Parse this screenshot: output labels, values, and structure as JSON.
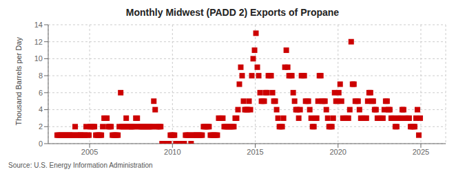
{
  "chart_data": {
    "type": "scatter",
    "title": "Monthly Midwest (PADD 2) Exports of Propane",
    "ylabel": "Thousand Barrels per Day",
    "annotations": [
      "Source: U.S. Energy Information Administration"
    ],
    "color": "#cc0000",
    "marker": "square",
    "grid": true,
    "xlim": [
      2002.5,
      2026.5
    ],
    "ylim": [
      0,
      14
    ],
    "xticks": [
      2005,
      2010,
      2015,
      2020,
      2025
    ],
    "yticks": [
      0,
      2,
      4,
      6,
      8,
      10,
      12,
      14
    ],
    "x": [
      2003.041667,
      2003.125,
      2003.208333,
      2003.291667,
      2003.375,
      2003.458333,
      2003.541667,
      2003.625,
      2003.708333,
      2003.791667,
      2003.875,
      2003.958333,
      2004.041667,
      2004.125,
      2004.208333,
      2004.291667,
      2004.375,
      2004.458333,
      2004.541667,
      2004.625,
      2004.708333,
      2004.791667,
      2004.875,
      2004.958333,
      2005.041667,
      2005.125,
      2005.208333,
      2005.291667,
      2005.375,
      2005.458333,
      2005.541667,
      2005.625,
      2005.708333,
      2005.791667,
      2005.875,
      2005.958333,
      2006.041667,
      2006.125,
      2006.208333,
      2006.291667,
      2006.375,
      2006.458333,
      2006.541667,
      2006.625,
      2006.708333,
      2006.791667,
      2006.875,
      2006.958333,
      2007.041667,
      2007.125,
      2007.208333,
      2007.291667,
      2007.375,
      2007.458333,
      2007.541667,
      2007.625,
      2007.708333,
      2007.791667,
      2007.875,
      2007.958333,
      2008.041667,
      2008.125,
      2008.208333,
      2008.291667,
      2008.375,
      2008.458333,
      2008.541667,
      2008.625,
      2008.708333,
      2008.791667,
      2008.875,
      2008.958333,
      2009.041667,
      2009.125,
      2009.208333,
      2009.291667,
      2009.375,
      2009.458333,
      2009.541667,
      2009.625,
      2009.708333,
      2009.791667,
      2009.875,
      2009.958333,
      2010.041667,
      2010.125,
      2010.208333,
      2010.291667,
      2010.375,
      2010.458333,
      2010.541667,
      2010.625,
      2010.708333,
      2010.791667,
      2010.875,
      2010.958333,
      2011.041667,
      2011.125,
      2011.208333,
      2011.291667,
      2011.375,
      2011.458333,
      2011.541667,
      2011.625,
      2011.708333,
      2011.791667,
      2011.875,
      2011.958333,
      2012.041667,
      2012.125,
      2012.208333,
      2012.291667,
      2012.375,
      2012.458333,
      2012.541667,
      2012.625,
      2012.708333,
      2012.791667,
      2012.875,
      2012.958333,
      2013.041667,
      2013.125,
      2013.208333,
      2013.291667,
      2013.375,
      2013.458333,
      2013.541667,
      2013.625,
      2013.708333,
      2013.791667,
      2013.875,
      2013.958333,
      2014.041667,
      2014.125,
      2014.208333,
      2014.291667,
      2014.375,
      2014.458333,
      2014.541667,
      2014.625,
      2014.708333,
      2014.791667,
      2014.875,
      2014.958333,
      2015.041667,
      2015.125,
      2015.208333,
      2015.291667,
      2015.375,
      2015.458333,
      2015.541667,
      2015.625,
      2015.708333,
      2015.791667,
      2015.875,
      2015.958333,
      2016.041667,
      2016.125,
      2016.208333,
      2016.291667,
      2016.375,
      2016.458333,
      2016.541667,
      2016.625,
      2016.708333,
      2016.791667,
      2016.875,
      2016.958333,
      2017.041667,
      2017.125,
      2017.208333,
      2017.291667,
      2017.375,
      2017.458333,
      2017.541667,
      2017.625,
      2017.708333,
      2017.791667,
      2017.875,
      2017.958333,
      2018.041667,
      2018.125,
      2018.208333,
      2018.291667,
      2018.375,
      2018.458333,
      2018.541667,
      2018.625,
      2018.708333,
      2018.791667,
      2018.875,
      2018.958333,
      2019.041667,
      2019.125,
      2019.208333,
      2019.291667,
      2019.375,
      2019.458333,
      2019.541667,
      2019.625,
      2019.708333,
      2019.791667,
      2019.875,
      2019.958333,
      2020.041667,
      2020.125,
      2020.208333,
      2020.291667,
      2020.375,
      2020.458333,
      2020.541667,
      2020.625,
      2020.708333,
      2020.791667,
      2020.875,
      2020.958333,
      2021.041667,
      2021.125,
      2021.208333,
      2021.291667,
      2021.375,
      2021.458333,
      2021.541667,
      2021.625,
      2021.708333,
      2021.791667,
      2021.875,
      2021.958333,
      2022.041667,
      2022.125,
      2022.208333,
      2022.291667,
      2022.375,
      2022.458333,
      2022.541667,
      2022.625,
      2022.708333,
      2022.791667,
      2022.875,
      2022.958333,
      2023.041667,
      2023.125,
      2023.208333,
      2023.291667,
      2023.375,
      2023.458333,
      2023.541667,
      2023.625,
      2023.708333,
      2023.791667,
      2023.875,
      2023.958333,
      2024.041667,
      2024.125,
      2024.208333,
      2024.291667,
      2024.375,
      2024.458333,
      2024.541667,
      2024.625,
      2024.708333,
      2024.791667,
      2024.875,
      2024.958333
    ],
    "values": [
      1,
      1,
      1,
      1,
      1,
      1,
      1,
      1,
      1,
      1,
      1,
      1,
      1,
      2,
      1,
      1,
      1,
      1,
      1,
      1,
      1,
      2,
      1,
      1,
      2,
      2,
      2,
      2,
      1,
      1,
      1,
      1,
      1,
      2,
      3,
      3,
      3,
      2,
      2,
      2,
      1,
      1,
      1,
      1,
      1,
      2,
      6,
      2,
      2,
      2,
      3,
      2,
      2,
      2,
      2,
      2,
      2,
      3,
      3,
      2,
      2,
      2,
      2,
      2,
      2,
      2,
      2,
      2,
      2,
      2,
      5,
      4,
      2,
      2,
      2,
      2,
      0,
      0,
      0,
      0,
      0,
      0,
      1,
      1,
      1,
      1,
      0,
      0,
      0,
      0,
      0,
      0,
      0,
      1,
      1,
      1,
      1,
      0,
      1,
      1,
      1,
      1,
      1,
      1,
      1,
      1,
      2,
      2,
      2,
      2,
      2,
      1,
      1,
      1,
      1,
      1,
      1,
      3,
      3,
      3,
      3,
      2,
      2,
      2,
      2,
      2,
      2,
      2,
      2,
      3,
      3,
      4,
      7,
      9,
      8,
      5,
      4,
      4,
      4,
      5,
      4,
      8,
      10,
      11,
      13,
      9,
      8,
      6,
      5,
      5,
      5,
      6,
      6,
      8,
      8,
      8,
      6,
      5,
      5,
      4,
      3,
      2,
      2,
      2,
      3,
      9,
      11,
      9,
      8,
      8,
      8,
      6,
      5,
      4,
      4,
      3,
      4,
      8,
      8,
      8,
      5,
      5,
      5,
      4,
      3,
      2,
      2,
      3,
      3,
      5,
      8,
      8,
      5,
      5,
      5,
      4,
      3,
      2,
      2,
      2,
      3,
      6,
      5,
      5,
      6,
      7,
      5,
      3,
      3,
      3,
      3,
      3,
      4,
      12,
      7,
      7,
      5,
      5,
      5,
      4,
      3,
      3,
      3,
      3,
      3,
      5,
      6,
      6,
      5,
      5,
      4,
      4,
      3,
      3,
      3,
      3,
      3,
      4,
      5,
      5,
      4,
      4,
      3,
      3,
      3,
      2,
      2,
      3,
      3,
      3,
      4,
      4,
      3,
      3,
      3,
      3,
      2,
      2,
      2,
      2,
      3,
      4,
      1,
      3
    ]
  }
}
